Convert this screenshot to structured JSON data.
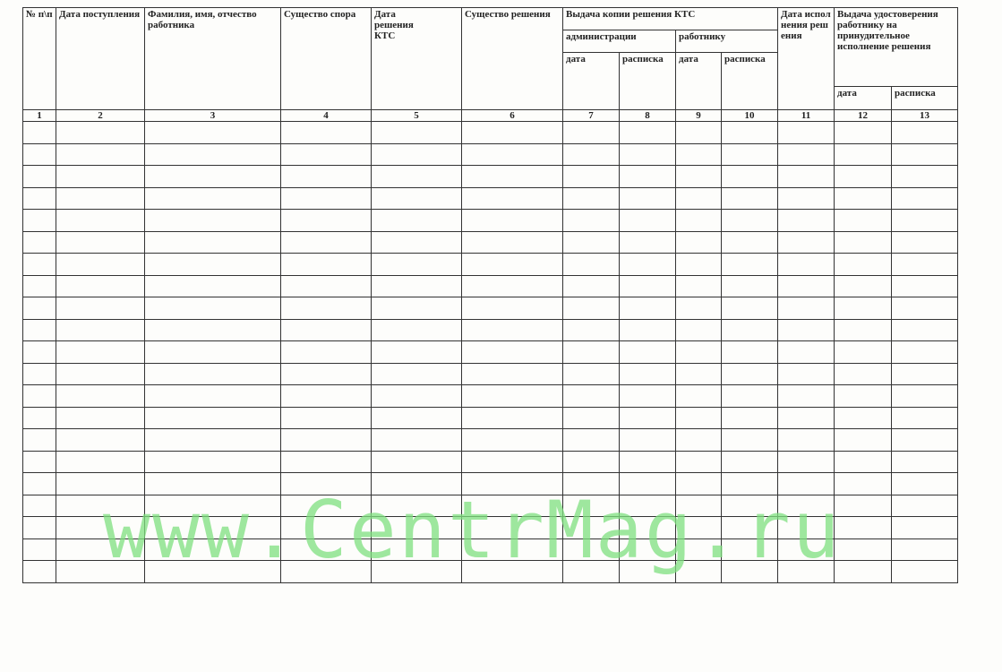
{
  "header": {
    "c1": "№ п\\п",
    "c2": "Дата поступления",
    "c3": "Фамилия, имя, отчество работника",
    "c4": "Существо спора",
    "c5": "Дата решения КТС",
    "c6": "Существо решения",
    "copy_group": "Выдача копии решения КТС",
    "admin": "администрации",
    "worker": "работнику",
    "date": "дата",
    "receipt_split": "расписка",
    "c11": "Дата исполнения решения",
    "cert_group": "Выдача удостоверения работнику на принудительное исполнение решения",
    "receipt": "расписка"
  },
  "column_numbers": [
    "1",
    "2",
    "3",
    "4",
    "5",
    "6",
    "7",
    "8",
    "9",
    "10",
    "11",
    "12",
    "13"
  ],
  "body_row_count": 21,
  "watermark": "www.CentrMag.ru",
  "colors": {
    "watermark": "#7fe07f",
    "lines": "#333333"
  }
}
